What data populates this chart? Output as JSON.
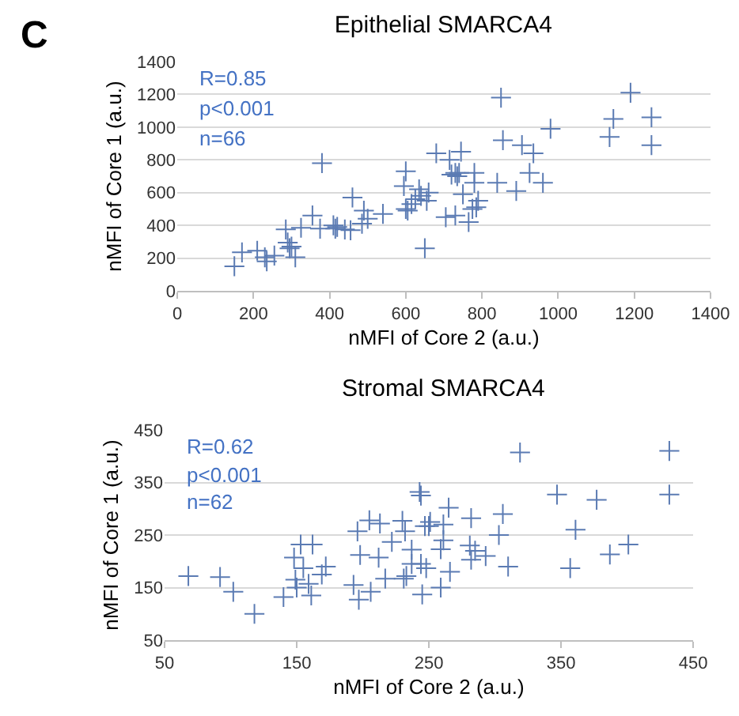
{
  "chart_data": [
    {
      "type": "scatter",
      "title": "Epithelial SMARCA4",
      "xlabel": "nMFI of Core 2 (a.u.)",
      "ylabel": "nMFI of Core 1 (a.u.)",
      "annotations": [
        "C",
        "R=0.85",
        "p<0.001",
        "n=66"
      ],
      "marker": "cross",
      "grid": "y",
      "xlim": [
        0,
        1400
      ],
      "ylim": [
        0,
        1400
      ],
      "xticks": [
        0,
        200,
        400,
        600,
        800,
        1000,
        1200,
        1400
      ],
      "yticks": [
        0,
        200,
        400,
        600,
        800,
        1000,
        1200,
        1400
      ],
      "series": [
        {
          "color": "#5b7bb3",
          "x": [
            150,
            170,
            210,
            230,
            235,
            255,
            285,
            290,
            295,
            300,
            310,
            325,
            355,
            375,
            380,
            410,
            415,
            420,
            440,
            455,
            460,
            485,
            490,
            500,
            540,
            595,
            600,
            600,
            605,
            615,
            625,
            635,
            640,
            650,
            655,
            660,
            680,
            705,
            715,
            720,
            730,
            735,
            740,
            745,
            750,
            765,
            775,
            780,
            780,
            790,
            785,
            840,
            850,
            855,
            890,
            905,
            925,
            935,
            960,
            980,
            1135,
            1145,
            1190,
            1245,
            1245,
            730
          ],
          "values": [
            150,
            235,
            245,
            205,
            180,
            215,
            375,
            295,
            260,
            270,
            205,
            385,
            460,
            380,
            780,
            400,
            380,
            390,
            375,
            370,
            570,
            410,
            490,
            440,
            470,
            640,
            730,
            500,
            490,
            530,
            560,
            620,
            580,
            260,
            550,
            600,
            840,
            450,
            800,
            710,
            460,
            700,
            720,
            850,
            590,
            420,
            500,
            720,
            660,
            550,
            510,
            660,
            1180,
            920,
            610,
            890,
            720,
            840,
            660,
            990,
            940,
            1050,
            1210,
            1060,
            890,
            720
          ]
        }
      ]
    },
    {
      "type": "scatter",
      "title": "Stromal SMARCA4",
      "xlabel": "nMFI of Core 2 (a.u.)",
      "ylabel": "nMFI of Core 1 (a.u.)",
      "annotations": [
        "R=0.62",
        "p<0.001",
        "n=62"
      ],
      "marker": "cross",
      "grid": "y",
      "xlim": [
        50,
        450
      ],
      "ylim": [
        50,
        450
      ],
      "xticks": [
        50,
        150,
        250,
        350,
        450
      ],
      "yticks": [
        50,
        150,
        250,
        350,
        450
      ],
      "series": [
        {
          "color": "#5b7bb3",
          "x": [
            68,
            92,
            102,
            118,
            140,
            148,
            149,
            150,
            153,
            155,
            159,
            161,
            162,
            169,
            172,
            193,
            196,
            197,
            198,
            205,
            206,
            212,
            213,
            217,
            222,
            230,
            231,
            232,
            233,
            237,
            237,
            243,
            244,
            245,
            247,
            248,
            250,
            259,
            259,
            261,
            261,
            265,
            266,
            281,
            282,
            282,
            285,
            293,
            303,
            306,
            310,
            319,
            347,
            357,
            361,
            377,
            387,
            401,
            432,
            432,
            244,
            251
          ],
          "values": [
            172,
            170,
            142,
            100,
            132,
            207,
            165,
            150,
            232,
            187,
            157,
            135,
            232,
            175,
            190,
            155,
            257,
            127,
            212,
            278,
            142,
            207,
            272,
            167,
            237,
            277,
            167,
            257,
            172,
            222,
            195,
            332,
            195,
            137,
            267,
            187,
            267,
            223,
            150,
            270,
            240,
            302,
            180,
            230,
            282,
            203,
            220,
            210,
            250,
            290,
            190,
            407,
            327,
            187,
            260,
            317,
            213,
            232,
            327,
            410,
            325,
            275
          ]
        }
      ]
    }
  ]
}
